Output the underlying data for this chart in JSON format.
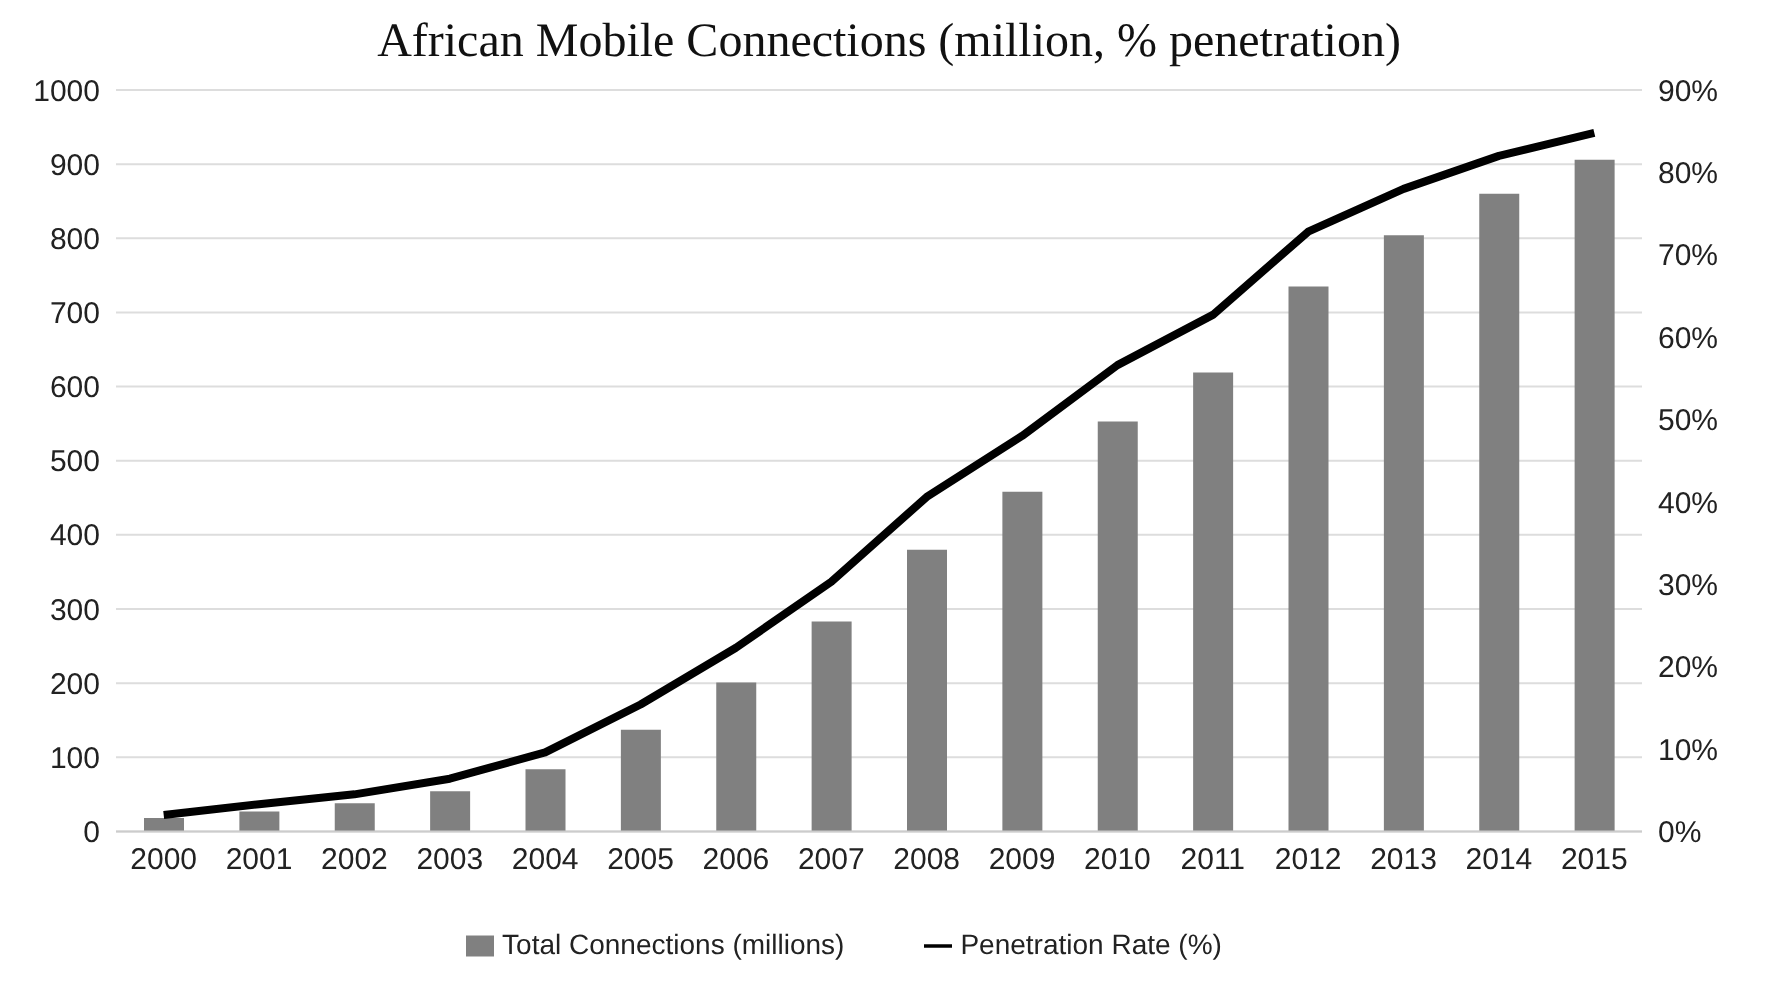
{
  "chart_data": {
    "type": "bar",
    "title": "African Mobile Connections (million, % penetration)",
    "categories": [
      "2000",
      "2001",
      "2002",
      "2003",
      "2004",
      "2005",
      "2006",
      "2007",
      "2008",
      "2009",
      "2010",
      "2011",
      "2012",
      "2013",
      "2014",
      "2015"
    ],
    "series": [
      {
        "name": "Total Connections (millions)",
        "color": "#808080",
        "values": [
          18,
          27,
          38,
          54,
          84,
          137,
          201,
          283,
          380,
          458,
          553,
          619,
          735,
          804,
          860,
          906
        ]
      },
      {
        "name": "Penetration Rate (%)",
        "type": "line",
        "axis": "y2",
        "color": "#000000",
        "values": [
          2.0,
          3.3,
          4.5,
          6.4,
          9.6,
          15.4,
          22.3,
          30.3,
          40.6,
          48.0,
          56.6,
          62.7,
          72.8,
          78.0,
          82.0,
          84.8
        ]
      }
    ],
    "ylim": [
      0,
      1000
    ],
    "yticks": [
      0,
      100,
      200,
      300,
      400,
      500,
      600,
      700,
      800,
      900,
      1000
    ],
    "y2lim": [
      0,
      90
    ],
    "y2ticks": [
      {
        "value": 0,
        "label": "0%"
      },
      {
        "value": 10,
        "label": "10%"
      },
      {
        "value": 20,
        "label": "20%"
      },
      {
        "value": 30,
        "label": "30%"
      },
      {
        "value": 40,
        "label": "40%"
      },
      {
        "value": 50,
        "label": "50%"
      },
      {
        "value": 60,
        "label": "60%"
      },
      {
        "value": 70,
        "label": "70%"
      },
      {
        "value": 80,
        "label": "80%"
      },
      {
        "value": 90,
        "label": "90%"
      }
    ],
    "grid": "y",
    "legend": "bottom",
    "marker": "none",
    "line_style": "solid"
  }
}
